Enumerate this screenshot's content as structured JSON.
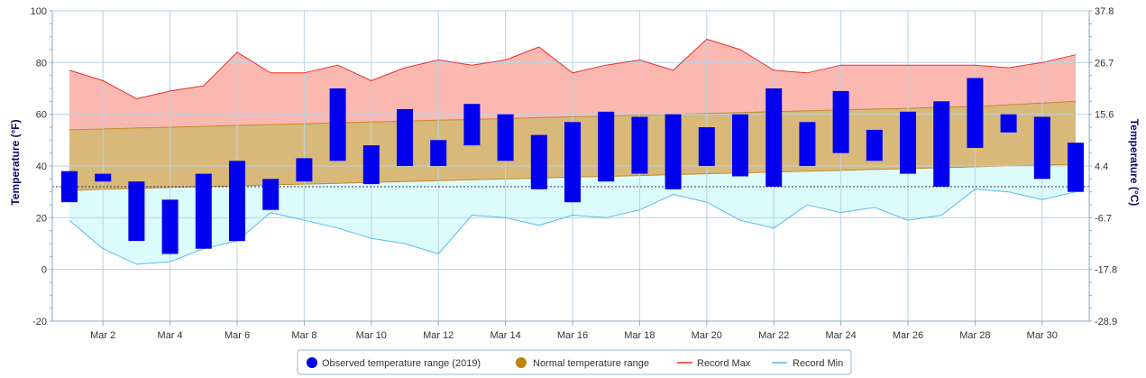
{
  "chart_data": {
    "type": "bar",
    "ylabel_left": "Temperature (°F)",
    "ylabel_right": "Temperature (°C)",
    "ylim": [
      -20,
      100
    ],
    "y_ticks_left": [
      "-20",
      "0",
      "20",
      "40",
      "60",
      "80",
      "100"
    ],
    "y_ticks_right": [
      "-28.9",
      "-17.8",
      "-6.7",
      "4.4",
      "15.6",
      "26.7",
      "37.8"
    ],
    "x_tick_labels": [
      "Mar 2",
      "Mar 4",
      "Mar 6",
      "Mar 8",
      "Mar 10",
      "Mar 12",
      "Mar 14",
      "Mar 16",
      "Mar 18",
      "Mar 20",
      "Mar 22",
      "Mar 24",
      "Mar 26",
      "Mar 28",
      "Mar 30"
    ],
    "x_tick_days": [
      2,
      4,
      6,
      8,
      10,
      12,
      14,
      16,
      18,
      20,
      22,
      24,
      26,
      28,
      30
    ],
    "days": [
      1,
      2,
      3,
      4,
      5,
      6,
      7,
      8,
      9,
      10,
      11,
      12,
      13,
      14,
      15,
      16,
      17,
      18,
      19,
      20,
      21,
      22,
      23,
      24,
      25,
      26,
      27,
      28,
      29,
      30,
      31
    ],
    "freezing_line": 32,
    "legend_position": "bottom",
    "grid": true,
    "series": [
      {
        "name": "Observed temperature range (2019)",
        "color": "#0000ee",
        "low": [
          26,
          34,
          11,
          6,
          8,
          11,
          23,
          34,
          42,
          33,
          40,
          40,
          48,
          42,
          31,
          26,
          34,
          37,
          31,
          40,
          36,
          32,
          40,
          45,
          42,
          37,
          32,
          47,
          53,
          35,
          30
        ],
        "high": [
          38,
          37,
          34,
          27,
          37,
          42,
          35,
          43,
          70,
          48,
          62,
          50,
          64,
          60,
          52,
          57,
          61,
          59,
          60,
          55,
          60,
          70,
          57,
          69,
          54,
          61,
          65,
          74,
          60,
          59,
          49
        ]
      },
      {
        "name": "Normal temperature range",
        "color": "#b8860b",
        "low": [
          30.5,
          31,
          31.3,
          31.7,
          32,
          32.3,
          32.7,
          33,
          33.3,
          33.7,
          34,
          34.3,
          34.7,
          35,
          35.3,
          35.7,
          36,
          36.3,
          36.7,
          37,
          37.3,
          37.7,
          38,
          38.3,
          38.7,
          39,
          39.3,
          39.7,
          40,
          40.3,
          40.7
        ],
        "high": [
          54,
          54.3,
          54.7,
          55,
          55.3,
          55.7,
          56,
          56.3,
          56.7,
          57,
          57.3,
          57.7,
          58,
          58.3,
          58.7,
          59,
          59.3,
          59.7,
          60,
          60.3,
          60.7,
          61,
          61.3,
          61.7,
          62,
          62.3,
          62.7,
          63,
          63.7,
          64.3,
          65
        ]
      },
      {
        "name": "Record Max",
        "color": "#e8302a",
        "values": [
          77,
          73,
          66,
          69,
          71,
          84,
          76,
          76,
          79,
          73,
          78,
          81,
          79,
          81,
          86,
          76,
          79,
          81,
          77,
          89,
          85,
          77,
          76,
          79,
          79,
          79,
          79,
          79,
          78,
          80,
          83
        ]
      },
      {
        "name": "Record Min",
        "color": "#5bb8f0",
        "values": [
          19,
          8,
          2,
          3,
          8,
          11,
          22,
          19,
          16,
          12,
          10,
          6,
          21,
          20,
          17,
          21,
          20,
          23,
          29,
          26,
          19,
          16,
          25,
          22,
          24,
          19,
          21,
          31,
          30,
          27,
          30
        ]
      }
    ]
  }
}
